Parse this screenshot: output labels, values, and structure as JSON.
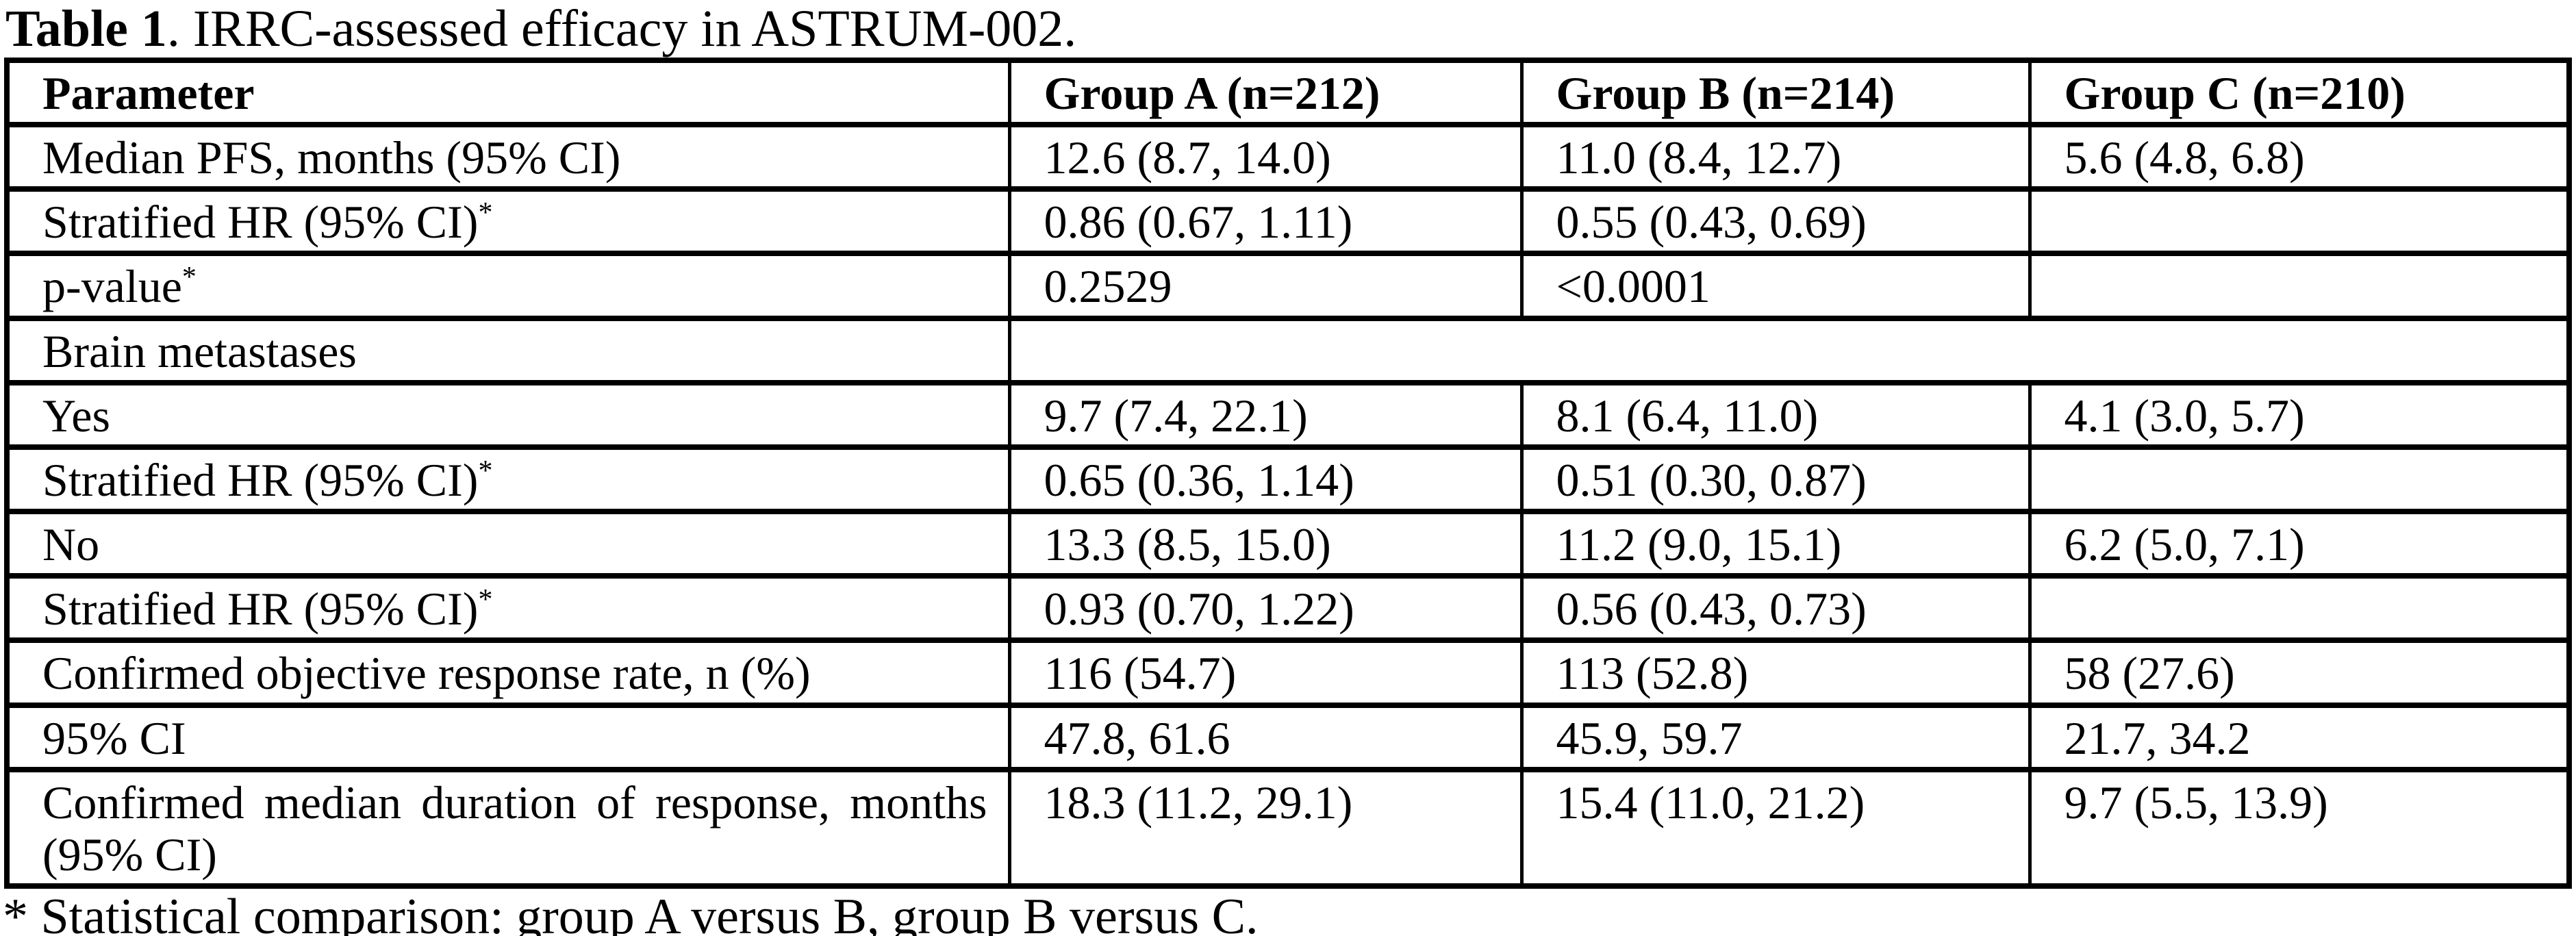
{
  "title": {
    "bold": "Table 1",
    "rest": ". IRRC-assessed efficacy in ASTRUM-002."
  },
  "table": {
    "superscript_marker": "*",
    "columns": [
      "Parameter",
      "Group A (n=212)",
      "Group B (n=214)",
      "Group C (n=210)"
    ],
    "rows": [
      {
        "parameter": "Median PFS, months (95% CI)",
        "indent": 0,
        "superscript": false,
        "span": false,
        "justify": false,
        "values": [
          "12.6 (8.7, 14.0)",
          "11.0 (8.4, 12.7)",
          "5.6 (4.8, 6.8)"
        ]
      },
      {
        "parameter": "Stratified HR (95% CI)",
        "indent": 1,
        "superscript": true,
        "span": false,
        "justify": false,
        "values": [
          "0.86 (0.67, 1.11)",
          "0.55 (0.43, 0.69)",
          ""
        ]
      },
      {
        "parameter": "p-value",
        "indent": 1,
        "superscript": true,
        "span": false,
        "justify": false,
        "values": [
          "0.2529",
          "<0.0001",
          ""
        ]
      },
      {
        "parameter": "Brain metastases",
        "indent": 1,
        "superscript": false,
        "span": true,
        "justify": false,
        "values": [
          ""
        ]
      },
      {
        "parameter": "Yes",
        "indent": 2,
        "superscript": false,
        "span": false,
        "justify": false,
        "values": [
          "9.7 (7.4, 22.1)",
          "8.1 (6.4, 11.0)",
          "4.1 (3.0, 5.7)"
        ]
      },
      {
        "parameter": "Stratified HR (95% CI)",
        "indent": 3,
        "superscript": true,
        "span": false,
        "justify": false,
        "values": [
          "0.65 (0.36, 1.14)",
          "0.51 (0.30, 0.87)",
          ""
        ]
      },
      {
        "parameter": "No",
        "indent": 2,
        "superscript": false,
        "span": false,
        "justify": false,
        "values": [
          "13.3 (8.5, 15.0)",
          "11.2 (9.0, 15.1)",
          "6.2 (5.0, 7.1)"
        ]
      },
      {
        "parameter": "Stratified HR (95% CI)",
        "indent": 3,
        "superscript": true,
        "span": false,
        "justify": false,
        "values": [
          "0.93 (0.70, 1.22)",
          "0.56 (0.43, 0.73)",
          ""
        ]
      },
      {
        "parameter": "Confirmed objective response rate, n (%)",
        "indent": 0,
        "superscript": false,
        "span": false,
        "justify": false,
        "values": [
          "116 (54.7)",
          "113 (52.8)",
          "58 (27.6)"
        ]
      },
      {
        "parameter": "95% CI",
        "indent": 1,
        "superscript": false,
        "span": false,
        "justify": false,
        "values": [
          "47.8, 61.6",
          "45.9, 59.7",
          "21.7, 34.2"
        ]
      },
      {
        "parameter": "Confirmed median duration of response, months (95% CI)",
        "indent": 0,
        "superscript": false,
        "span": false,
        "justify": true,
        "values": [
          "18.3 (11.2, 29.1)",
          "15.4 (11.0, 21.2)",
          "9.7 (5.5, 13.9)"
        ]
      }
    ]
  },
  "footnote": "* Statistical comparison: group A versus B, group B versus C."
}
